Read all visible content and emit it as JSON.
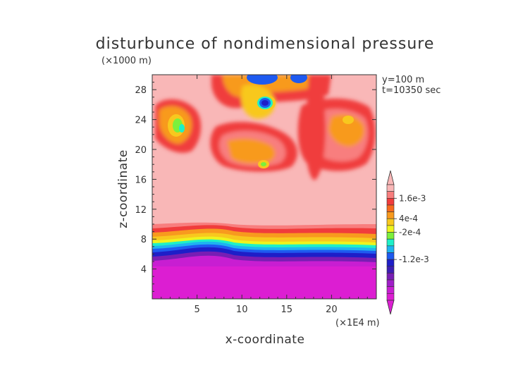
{
  "chart_data": {
    "type": "heatmap",
    "title": "disturbunce of nondimensional pressure",
    "xlabel": "x-coordinate",
    "ylabel": "z-coordinate",
    "x_unit": "(×1E4 m)",
    "y_unit": "(×1000 m)",
    "annotations": [
      "y=100 m",
      "t=10350 sec"
    ],
    "xlim": [
      0,
      25
    ],
    "ylim": [
      0,
      30
    ],
    "x_ticks": [
      5,
      10,
      15,
      20
    ],
    "y_ticks": [
      4,
      8,
      12,
      16,
      20,
      24,
      28
    ],
    "colorbar": {
      "labels": [
        "1.6e-3",
        "4e-4",
        "-2e-4",
        "-1.2e-3"
      ],
      "colors": [
        "#f9b7b7",
        "#f87e7e",
        "#f03c3c",
        "#f86a1e",
        "#f89a1e",
        "#f8c81e",
        "#eef41e",
        "#7cf03c",
        "#1ef0c8",
        "#1eb4f0",
        "#1e5af0",
        "#1e1ec8",
        "#3c1eb4",
        "#781eb4",
        "#a01ec8",
        "#c81ed2",
        "#dc1ed2"
      ]
    },
    "regions_description": {
      "z_0_6": "strong negative (magenta)",
      "z_6_9.5": "sharp gradient through blue, cyan, yellow, orange",
      "z_9.5_30": "positive (pink) with orange/red patches and isolated negative cores near z≈24 x≈3.5, z≈26.5 x≈12.5, z≈29.5 x≈10 and 18"
    }
  }
}
